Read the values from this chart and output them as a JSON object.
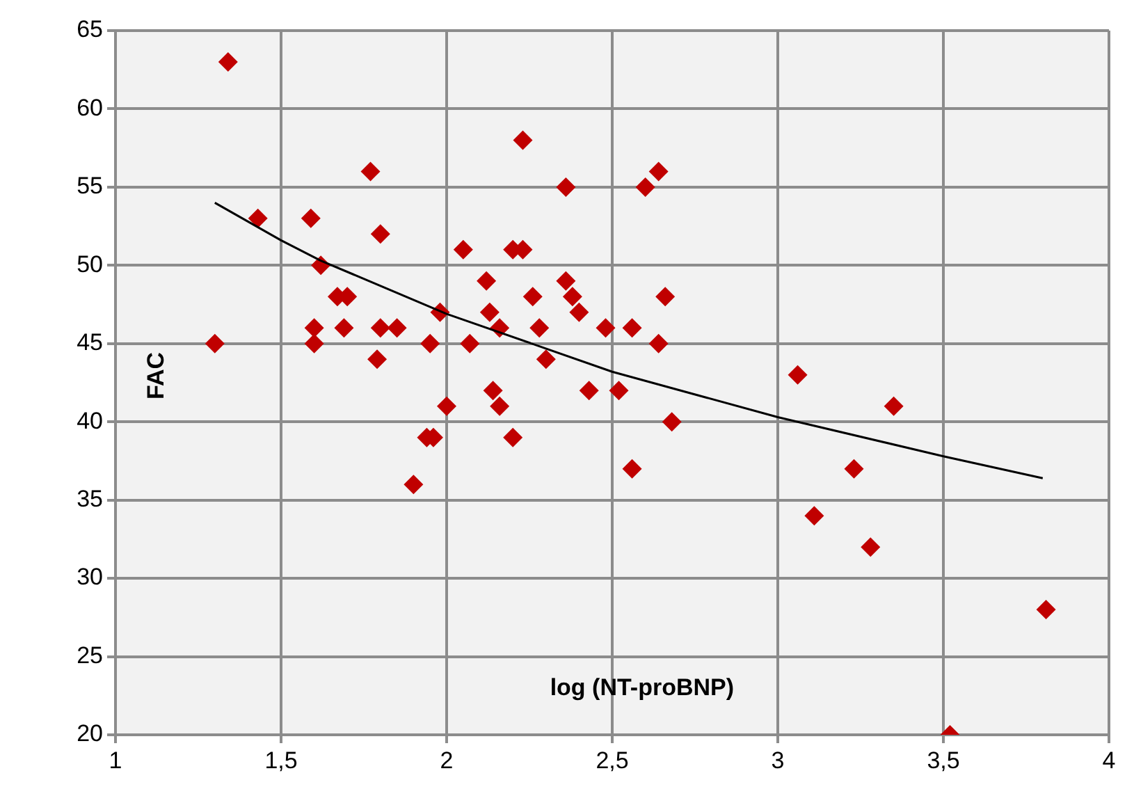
{
  "chart_data": {
    "type": "scatter",
    "xlabel": "log (NT-proBNP)",
    "ylabel": "FAC",
    "xlim": [
      1,
      4
    ],
    "xticks": [
      1,
      {
        "value": 1.5,
        "label": "1,5"
      },
      2,
      {
        "value": 2.5,
        "label": "2,5"
      },
      3,
      {
        "value": 3.5,
        "label": "3,5"
      },
      4
    ],
    "ylim": [
      20,
      65
    ],
    "yticks": [
      20,
      25,
      30,
      35,
      40,
      45,
      50,
      55,
      60,
      65
    ],
    "grid": true,
    "legend": false,
    "marker": "diamond",
    "series": [
      {
        "color": "#c00000",
        "x": [
          1.3,
          1.34,
          1.43,
          1.59,
          1.6,
          1.6,
          1.62,
          1.67,
          1.7,
          1.69,
          1.77,
          1.8,
          1.79,
          1.8,
          1.85,
          1.98,
          1.95,
          1.94,
          1.96,
          1.9,
          2.0,
          2.05,
          2.07,
          2.23,
          2.36,
          2.64,
          2.6,
          2.2,
          2.23,
          2.12,
          2.36,
          2.26,
          2.38,
          2.66,
          2.13,
          2.4,
          2.16,
          2.28,
          2.48,
          2.56,
          2.64,
          2.3,
          2.14,
          2.43,
          2.52,
          2.16,
          2.68,
          2.2,
          2.56,
          3.06,
          3.35,
          3.23,
          3.11,
          3.28,
          3.81,
          3.52
        ],
        "values": [
          45,
          63,
          53,
          53,
          46,
          45,
          50,
          48,
          48,
          46,
          56,
          52,
          44,
          46,
          46,
          47,
          45,
          39,
          39,
          36,
          41,
          51,
          45,
          58,
          55,
          56,
          55,
          51,
          51,
          49,
          49,
          48,
          48,
          48,
          47,
          47,
          46,
          46,
          46,
          46,
          45,
          44,
          42,
          42,
          42,
          41,
          40,
          39,
          37,
          43,
          41,
          37,
          34,
          32,
          28,
          20
        ]
      },
      {
        "type": "line",
        "color": "#000000",
        "marker": "none",
        "x": [
          1.3,
          1.5,
          1.62,
          2.0,
          2.5,
          3.0,
          3.5,
          3.8
        ],
        "values": [
          54.0,
          51.6,
          50.3,
          46.9,
          43.2,
          40.3,
          37.8,
          36.4
        ]
      }
    ]
  }
}
